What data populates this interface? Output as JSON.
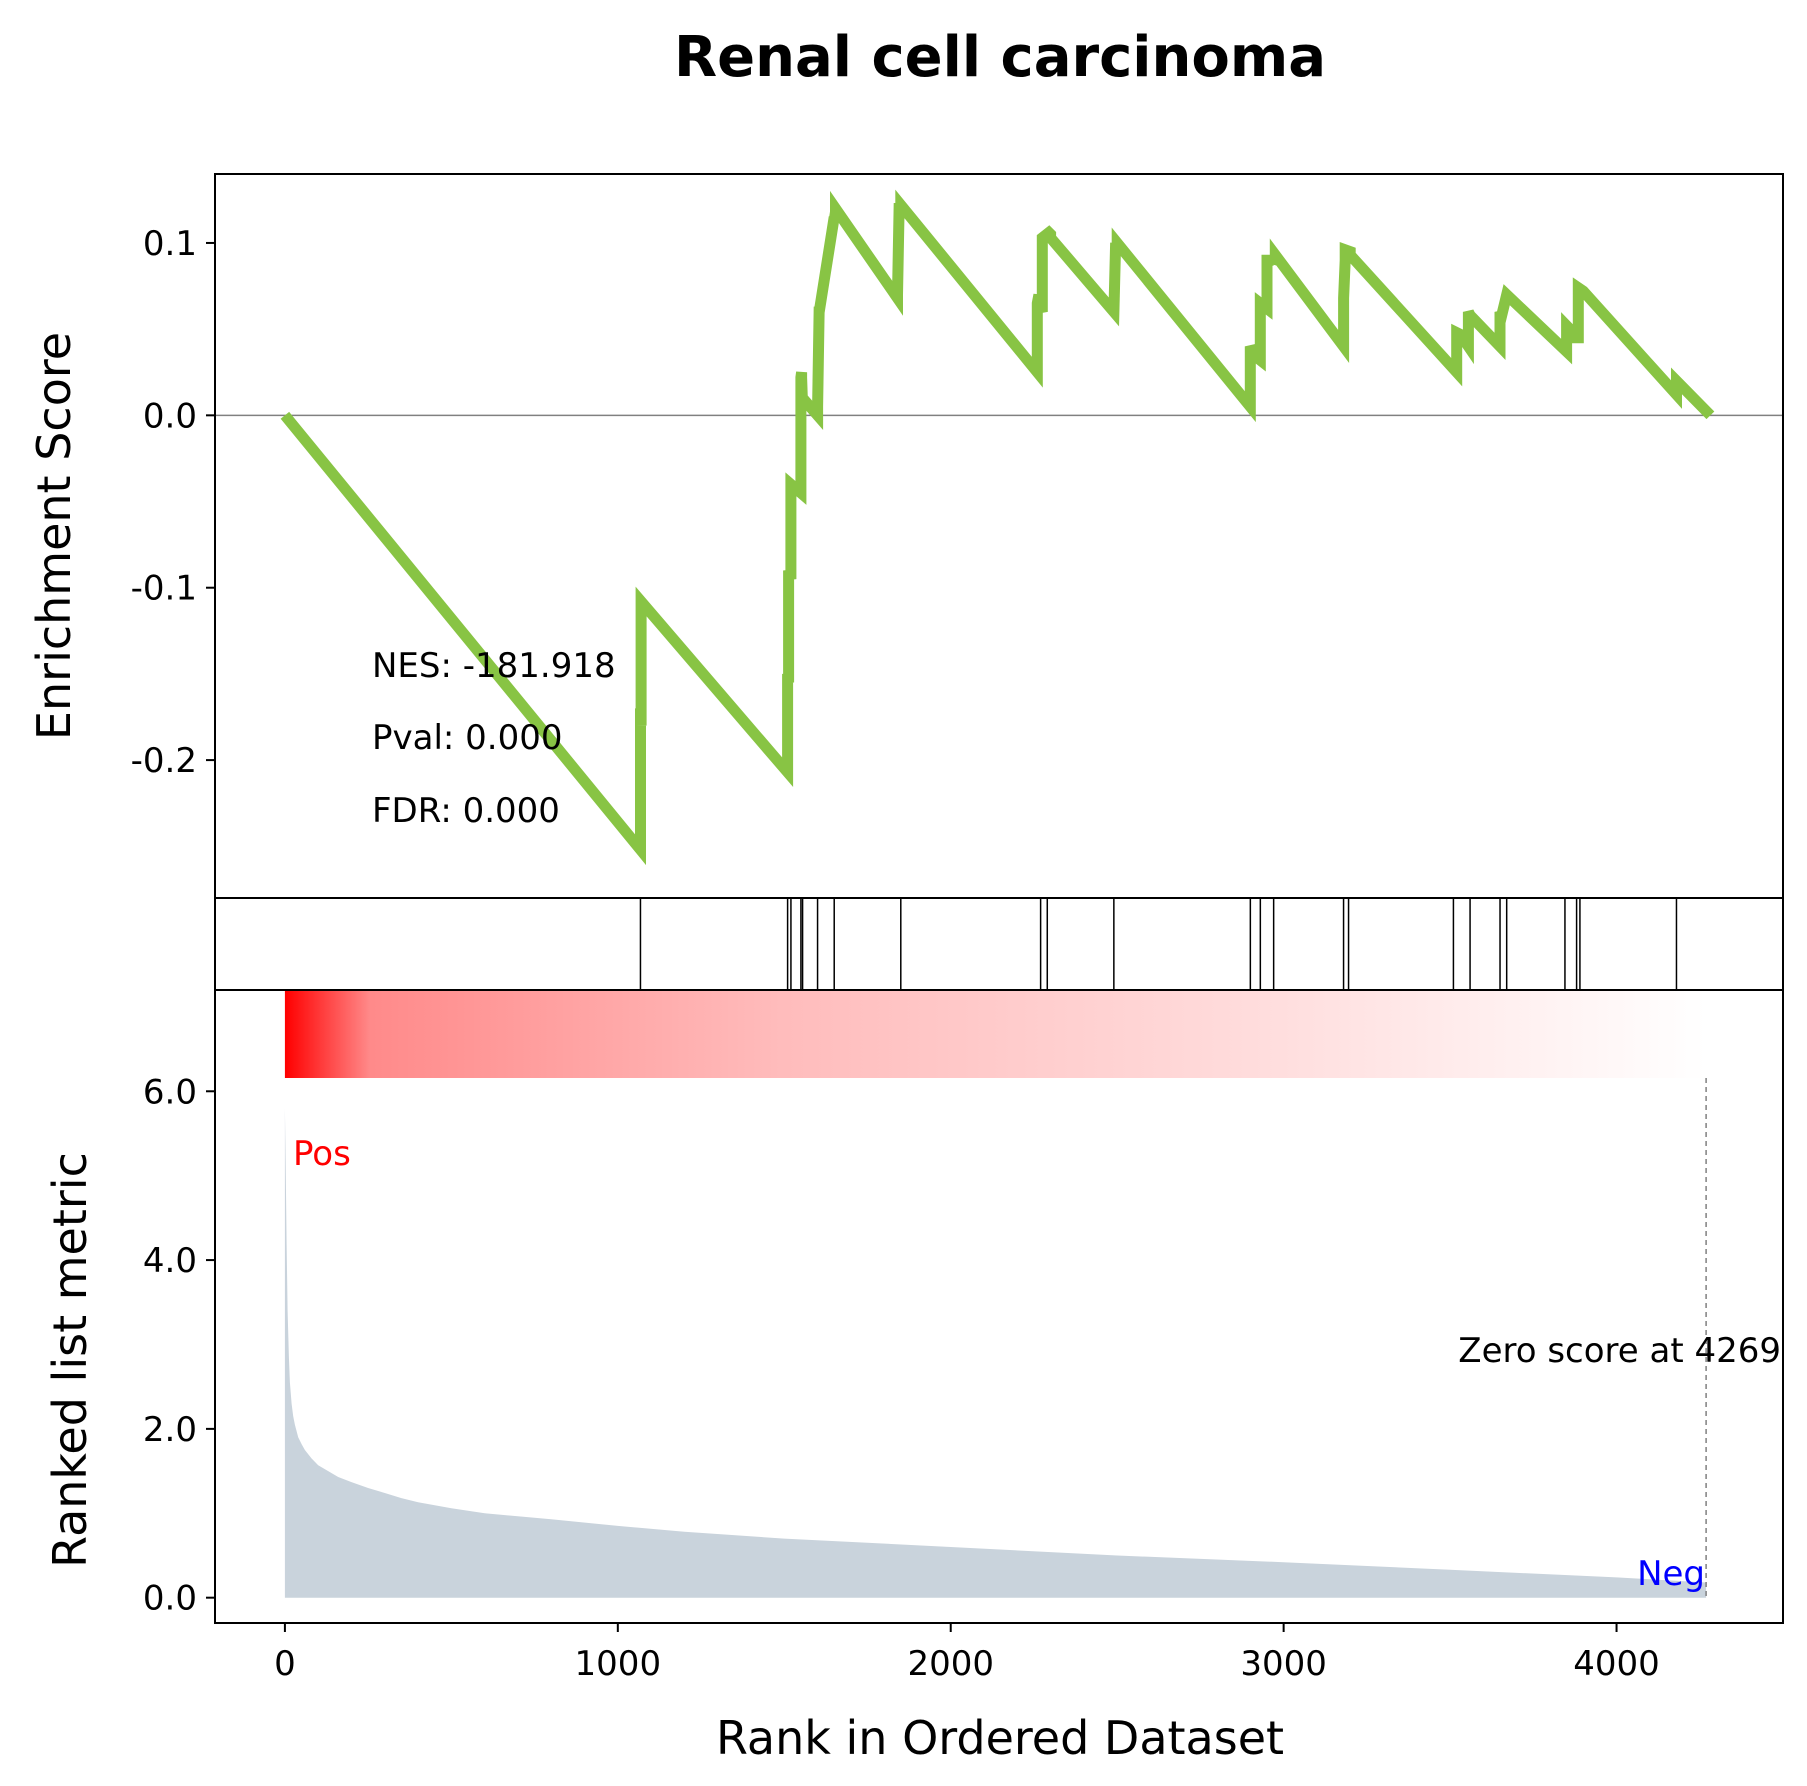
{
  "chart_data": {
    "type": "line",
    "title": "Renal cell carcinoma",
    "xlabel": "Rank in Ordered Dataset",
    "panels": {
      "enrichment": {
        "ylabel": "Enrichment Score",
        "yticks": [
          0.1,
          0.0,
          -0.1,
          -0.2
        ],
        "ytick_labels": [
          "0.1",
          "0.0",
          "-0.1",
          "-0.2"
        ],
        "ylim": [
          -0.28,
          0.14
        ],
        "zero_line": true,
        "line_color": "#88c444",
        "series": [
          {
            "x": [
              0,
              1068,
              1068,
              1070,
              1070,
              1510,
              1510,
              1513,
              1513,
              1520,
              1520,
              1550,
              1550,
              1552,
              1552,
              1555,
              1555,
              1600,
              1600,
              1605,
              1605,
              1650,
              1650,
              1654,
              1654,
              1840,
              1840,
              1845,
              1845,
              1850,
              1850,
              2260,
              2260,
              2265,
              2265,
              2275,
              2275,
              2295,
              2295,
              2300,
              2300,
              2490,
              2490,
              2495,
              2495,
              2500,
              2500,
              2900,
              2900,
              2910,
              2910,
              2930,
              2930,
              2950,
              2950,
              2970,
              2970,
              2975,
              2975,
              3180,
              3180,
              3185,
              3185,
              3200,
              3200,
              3520,
              3520,
              3530,
              3530,
              3555,
              3555,
              3560,
              3560,
              3575,
              3575,
              3650,
              3650,
              3655,
              3655,
              3670,
              3670,
              3850,
              3850,
              3860,
              3860,
              3885,
              3885,
              3900,
              3900,
              4180,
              4180,
              4282
            ],
            "y": [
              0.0,
              -0.252,
              -0.17,
              -0.18,
              -0.108,
              -0.207,
              -0.15,
              -0.155,
              -0.09,
              -0.095,
              -0.04,
              -0.045,
              0.022,
              0.025,
              0.022,
              0.005,
              0.01,
              0.0,
              0.005,
              0.063,
              0.06,
              0.115,
              0.113,
              0.118,
              0.12,
              0.068,
              0.07,
              0.12,
              0.12,
              0.12,
              0.122,
              0.025,
              0.065,
              0.07,
              0.065,
              0.06,
              0.103,
              0.106,
              0.106,
              0.105,
              0.103,
              0.06,
              0.06,
              0.097,
              0.097,
              0.097,
              0.1,
              0.005,
              0.04,
              0.036,
              0.035,
              0.032,
              0.065,
              0.062,
              0.09,
              0.09,
              0.088,
              0.09,
              0.093,
              0.04,
              0.068,
              0.09,
              0.096,
              0.095,
              0.093,
              0.025,
              0.048,
              0.047,
              0.047,
              0.04,
              0.06,
              0.058,
              0.058,
              0.055,
              0.055,
              0.04,
              0.06,
              0.058,
              0.058,
              0.07,
              0.07,
              0.037,
              0.052,
              0.05,
              0.045,
              0.045,
              0.074,
              0.072,
              0.072,
              0.012,
              0.02,
              0.0
            ]
          }
        ],
        "annotations": [
          "NES: -181.918",
          "Pval: 0.000",
          "FDR: 0.000"
        ]
      },
      "hits": {
        "positions": [
          1068,
          1510,
          1520,
          1550,
          1555,
          1600,
          1650,
          1850,
          2270,
          2290,
          2490,
          2900,
          2930,
          2970,
          3180,
          3195,
          3510,
          3560,
          3650,
          3670,
          3845,
          3880,
          3890,
          4180
        ]
      },
      "ranked": {
        "ylabel": "Ranked list metric",
        "yticks": [
          6.0,
          4.0,
          2.0,
          0.0
        ],
        "ytick_labels": [
          "6.0",
          "4.0",
          "2.0",
          "0.0"
        ],
        "ylim": [
          -0.3,
          7.2
        ],
        "fill_color": "#c9d3dc",
        "series": [
          {
            "x": [
              0,
              2,
              5,
              8,
              12,
              15,
              20,
              25,
              30,
              40,
              50,
              60,
              80,
              100,
              130,
              160,
              200,
              250,
              300,
              350,
              400,
              500,
              600,
              800,
              1000,
              1200,
              1500,
              2000,
              2500,
              3000,
              3500,
              4000,
              4269
            ],
            "y": [
              5.8,
              5.2,
              4.2,
              3.4,
              2.85,
              2.55,
              2.3,
              2.15,
              2.05,
              1.9,
              1.82,
              1.75,
              1.65,
              1.57,
              1.5,
              1.43,
              1.37,
              1.3,
              1.24,
              1.18,
              1.13,
              1.06,
              1.0,
              0.93,
              0.85,
              0.78,
              0.7,
              0.6,
              0.5,
              0.42,
              0.33,
              0.24,
              0.18
            ]
          }
        ],
        "colorbar": {
          "from": "#ff0000",
          "to": "#ffffff"
        },
        "pos_label": "Pos",
        "pos_color": "#ff0000",
        "neg_label": "Neg",
        "neg_color": "#0000ff",
        "zero_score": 4269,
        "zero_label": "Zero score at 4269"
      }
    },
    "xlim": [
      -210,
      4500
    ],
    "xticks": [
      0,
      1000,
      2000,
      3000,
      4000
    ],
    "xtick_labels": [
      "0",
      "1000",
      "2000",
      "3000",
      "4000"
    ]
  }
}
